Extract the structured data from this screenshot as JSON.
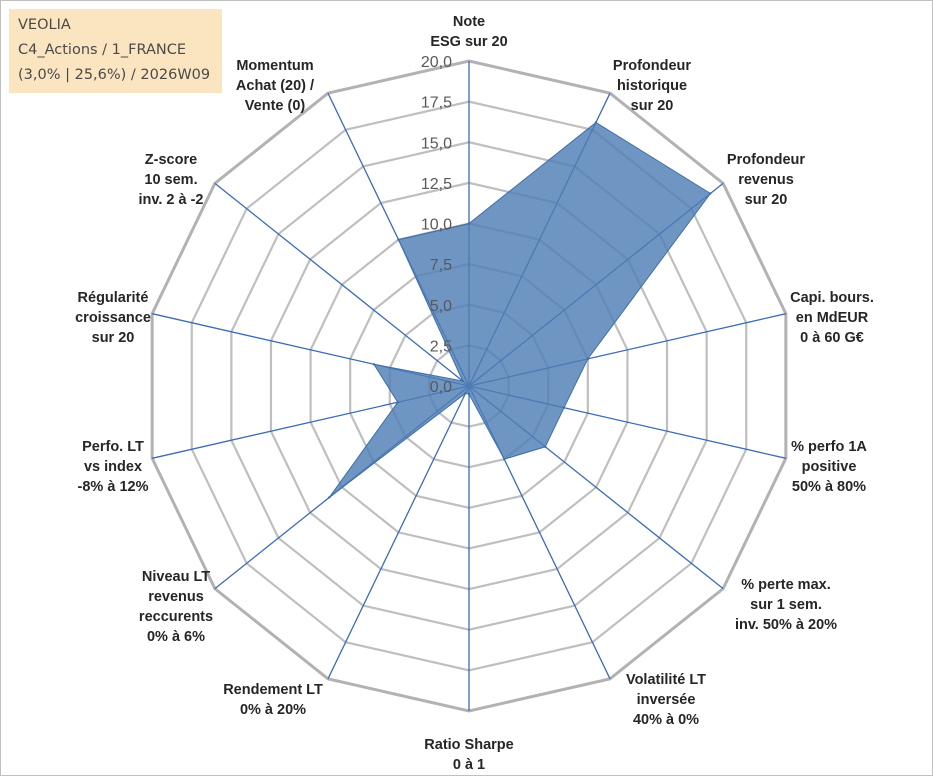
{
  "info": {
    "line1": "VEOLIA",
    "line2": "C4_Actions / 1_FRANCE",
    "line3": "(3,0% | 25,6%) / 2026W09"
  },
  "chart_data": {
    "type": "radar",
    "axis_min": 0,
    "axis_max": 20,
    "tick_step": 2.5,
    "ticks": [
      "0,0",
      "2,5",
      "5,0",
      "7,5",
      "10,0",
      "12,5",
      "15,0",
      "17,5",
      "20,0"
    ],
    "grid": true,
    "axes": [
      {
        "label": [
          "Note",
          "ESG sur 20"
        ],
        "value": 10.0
      },
      {
        "label": [
          "Profondeur",
          "historique",
          "sur 20"
        ],
        "value": 18.0
      },
      {
        "label": [
          "Profondeur",
          "revenus",
          "sur 20"
        ],
        "value": 19.0
      },
      {
        "label": [
          "Capi. bours.",
          "en MdEUR",
          "0 à 60 G€"
        ],
        "value": 7.5
      },
      {
        "label": [
          "% perfo 1A",
          "positive",
          "50% à 80%"
        ],
        "value": 6.0
      },
      {
        "label": [
          "% perte max.",
          "sur 1 sem.",
          "inv. 50% à 20%"
        ],
        "value": 6.0
      },
      {
        "label": [
          "Volatilité LT",
          "inversée",
          "40% à 0%"
        ],
        "value": 5.0
      },
      {
        "label": [
          "Ratio Sharpe",
          "0 à 1"
        ],
        "value": 0.5
      },
      {
        "label": [
          "Rendement LT",
          "0% à 20%"
        ],
        "value": 0.5
      },
      {
        "label": [
          "Niveau LT",
          "revenus",
          "reccurents",
          "0% à 6%"
        ],
        "value": 11.0
      },
      {
        "label": [
          "Perfo. LT",
          "vs index",
          "-8% à 12%"
        ],
        "value": 4.5
      },
      {
        "label": [
          "Régularité",
          "croissance",
          "sur 20"
        ],
        "value": 6.0
      },
      {
        "label": [
          "Z-score",
          "10 sem.",
          "inv. 2 à -2"
        ],
        "value": 0.5
      },
      {
        "label": [
          "Momentum",
          "Achat (20) /",
          "Vente (0)"
        ],
        "value": 10.0
      }
    ],
    "colors": {
      "fill": "#4f7eb5",
      "stroke": "#3f6fa8",
      "spoke": "#3a6cb7",
      "grid": "#bfbfbf",
      "outer": "#b2b2b2"
    }
  }
}
